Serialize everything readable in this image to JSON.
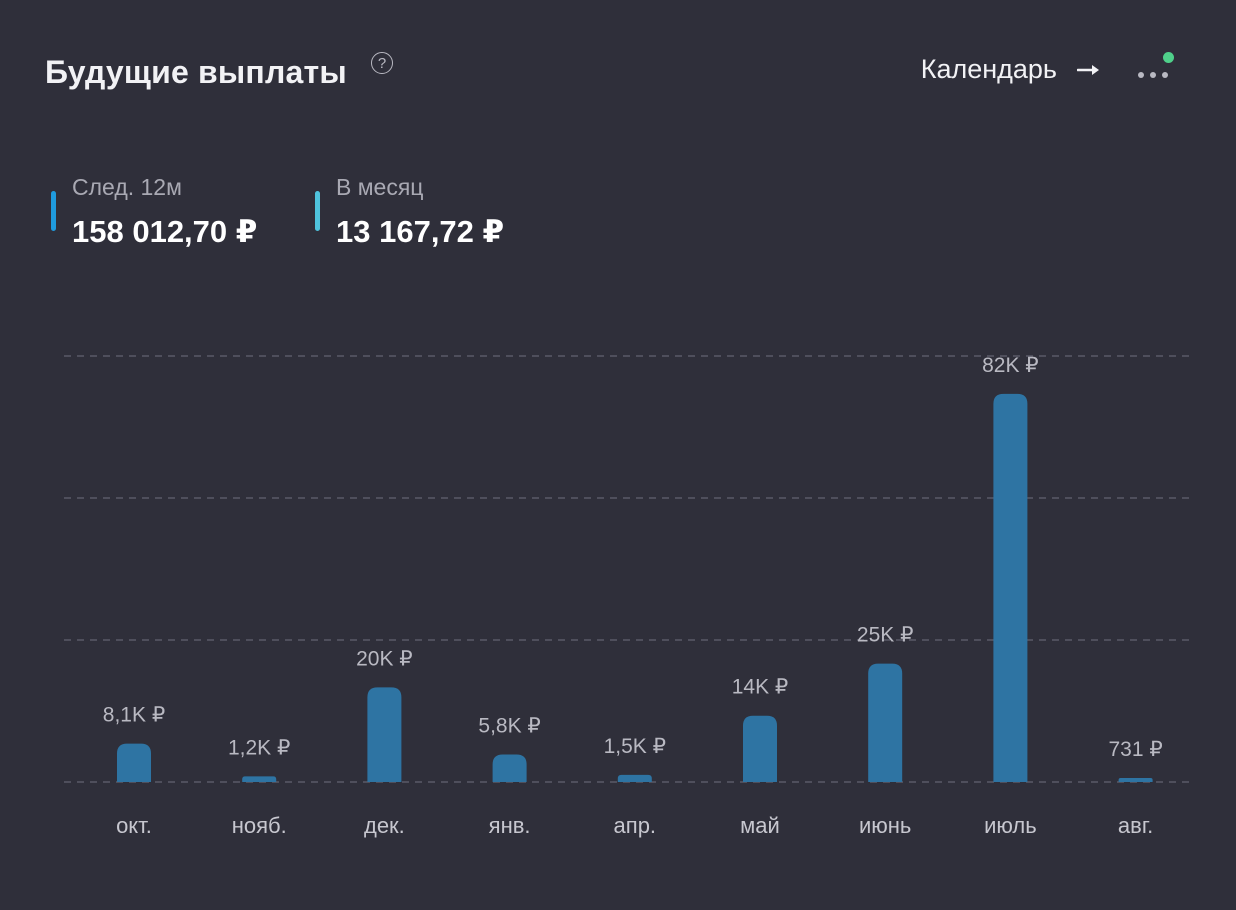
{
  "header": {
    "title": "Будущие выплаты",
    "help_icon": "?",
    "calendar_label": "Календарь",
    "status_color": "#4fd08a"
  },
  "stats": [
    {
      "label": "След. 12м",
      "value": "158 012,70 ₽",
      "color": "#1f9bde"
    },
    {
      "label": "В месяц",
      "value": "13 167,72 ₽",
      "color": "#4fc3dd"
    }
  ],
  "chart_data": {
    "type": "bar",
    "categories": [
      "окт.",
      "нояб.",
      "дек.",
      "янв.",
      "апр.",
      "май",
      "июнь",
      "июль",
      "авг."
    ],
    "values": [
      8100,
      1200,
      20000,
      5800,
      1500,
      14000,
      25000,
      82000,
      731
    ],
    "value_labels": [
      "8,1K ₽",
      "1,2K ₽",
      "20K ₽",
      "5,8K ₽",
      "1,5K ₽",
      "14K ₽",
      "25K ₽",
      "82K ₽",
      "731 ₽"
    ],
    "ylim": [
      0,
      90000
    ],
    "gridlines": [
      0,
      30000,
      60000,
      90000
    ],
    "bar_color": "#2e74a3",
    "grid": true
  }
}
